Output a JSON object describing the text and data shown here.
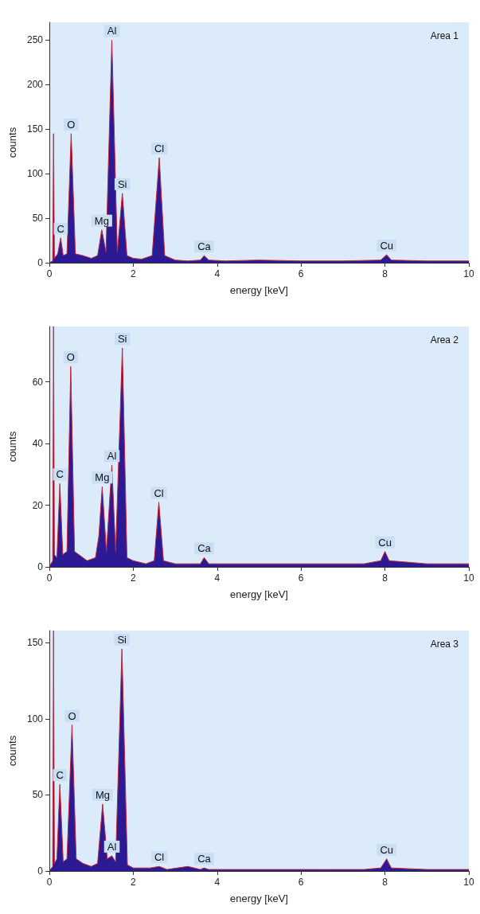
{
  "chart_data": [
    {
      "type": "area",
      "xlabel": "energy [keV]",
      "ylabel": "counts",
      "xlim": [
        0,
        10
      ],
      "xticks": [
        0,
        2,
        4,
        6,
        8,
        10
      ],
      "ylim": [
        0,
        270
      ],
      "yticks": [
        0,
        50,
        100,
        150,
        200,
        250
      ],
      "marker": "none",
      "annotations": [
        "Area 1",
        {
          "text": "C",
          "x": 0.27,
          "y": 28
        },
        {
          "text": "O",
          "x": 0.52,
          "y": 145
        },
        {
          "text": "Mg",
          "x": 1.25,
          "y": 37
        },
        {
          "text": "Al",
          "x": 1.49,
          "y": 250
        },
        {
          "text": "Si",
          "x": 1.74,
          "y": 78
        },
        {
          "text": "Cl",
          "x": 2.62,
          "y": 118
        },
        {
          "text": "Ca",
          "x": 3.69,
          "y": 8
        },
        {
          "text": "Cu",
          "x": 8.04,
          "y": 9
        }
      ],
      "series": [
        {
          "color": "#2b1a93",
          "x": [
            0,
            0.08,
            0.1,
            0.12,
            0.2,
            0.27,
            0.33,
            0.42,
            0.52,
            0.62,
            0.8,
            1.0,
            1.15,
            1.25,
            1.35,
            1.49,
            1.62,
            1.74,
            1.85,
            2.0,
            2.2,
            2.45,
            2.62,
            2.75,
            3.0,
            3.3,
            3.6,
            3.69,
            3.8,
            4.2,
            5,
            6,
            7,
            7.9,
            8.04,
            8.15,
            9,
            10
          ],
          "values": [
            0,
            2,
            145,
            5,
            10,
            28,
            8,
            10,
            145,
            10,
            8,
            5,
            8,
            37,
            12,
            250,
            12,
            78,
            8,
            5,
            4,
            8,
            118,
            8,
            3,
            2,
            3,
            8,
            3,
            2,
            3,
            2,
            2,
            3,
            9,
            3,
            2,
            2
          ]
        }
      ]
    },
    {
      "type": "area",
      "xlabel": "energy [keV]",
      "ylabel": "counts",
      "xlim": [
        0,
        10
      ],
      "xticks": [
        0,
        2,
        4,
        6,
        8,
        10
      ],
      "ylim": [
        0,
        78
      ],
      "yticks": [
        0,
        20,
        40,
        60
      ],
      "marker": "none",
      "annotations": [
        "Area 2",
        {
          "text": "C",
          "x": 0.25,
          "y": 27
        },
        {
          "text": "O",
          "x": 0.51,
          "y": 65
        },
        {
          "text": "Mg",
          "x": 1.26,
          "y": 26
        },
        {
          "text": "Al",
          "x": 1.49,
          "y": 33
        },
        {
          "text": "Si",
          "x": 1.74,
          "y": 71
        },
        {
          "text": "Cl",
          "x": 2.61,
          "y": 21
        },
        {
          "text": "Ca",
          "x": 3.69,
          "y": 3
        },
        {
          "text": "Cu",
          "x": 8.0,
          "y": 5
        }
      ],
      "series": [
        {
          "color": "#2b1a93",
          "x": [
            0,
            0.08,
            0.1,
            0.12,
            0.18,
            0.25,
            0.32,
            0.42,
            0.51,
            0.6,
            0.7,
            0.9,
            1.1,
            1.18,
            1.26,
            1.36,
            1.49,
            1.58,
            1.74,
            1.85,
            2.0,
            2.3,
            2.5,
            2.61,
            2.72,
            3.0,
            3.4,
            3.6,
            3.69,
            3.8,
            4.5,
            5.5,
            6.5,
            7.5,
            7.9,
            8.0,
            8.1,
            9,
            10
          ],
          "values": [
            0,
            2,
            78,
            4,
            3,
            27,
            4,
            5,
            65,
            5,
            4,
            2,
            3,
            10,
            26,
            5,
            33,
            5,
            71,
            3,
            2,
            1,
            2,
            21,
            2,
            1,
            1,
            1,
            3,
            1,
            1,
            1,
            1,
            1,
            2,
            5,
            2,
            1,
            1
          ]
        }
      ]
    },
    {
      "type": "area",
      "xlabel": "energy [keV]",
      "ylabel": "counts",
      "xlim": [
        0,
        10
      ],
      "xticks": [
        0,
        2,
        4,
        6,
        8,
        10
      ],
      "ylim": [
        0,
        158
      ],
      "yticks": [
        0,
        50,
        100,
        150
      ],
      "marker": "none",
      "annotations": [
        "Area 3",
        {
          "text": "C",
          "x": 0.25,
          "y": 57
        },
        {
          "text": "O",
          "x": 0.54,
          "y": 96
        },
        {
          "text": "Mg",
          "x": 1.27,
          "y": 44
        },
        {
          "text": "Al",
          "x": 1.49,
          "y": 10
        },
        {
          "text": "Si",
          "x": 1.73,
          "y": 146
        },
        {
          "text": "Cl",
          "x": 2.62,
          "y": 3
        },
        {
          "text": "Ca",
          "x": 3.69,
          "y": 2
        },
        {
          "text": "Cu",
          "x": 8.04,
          "y": 8
        }
      ],
      "series": [
        {
          "color": "#2b1a93",
          "x": [
            0,
            0.08,
            0.1,
            0.12,
            0.18,
            0.25,
            0.33,
            0.42,
            0.54,
            0.64,
            0.8,
            1.0,
            1.15,
            1.27,
            1.38,
            1.49,
            1.58,
            1.73,
            1.86,
            2.0,
            2.4,
            2.62,
            2.8,
            3.3,
            3.6,
            3.69,
            3.8,
            4.5,
            5.5,
            6.5,
            7.5,
            7.9,
            8.04,
            8.15,
            9,
            10
          ],
          "values": [
            0,
            3,
            158,
            5,
            8,
            57,
            6,
            8,
            96,
            8,
            5,
            3,
            5,
            44,
            8,
            10,
            6,
            146,
            4,
            2,
            2,
            3,
            1,
            3,
            1,
            2,
            1,
            1,
            1,
            1,
            1,
            2,
            8,
            2,
            1,
            1
          ]
        }
      ]
    }
  ]
}
